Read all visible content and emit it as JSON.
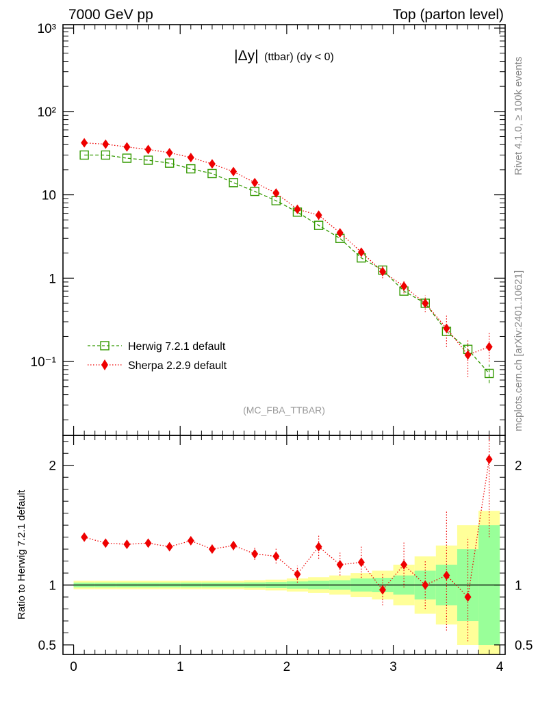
{
  "header": {
    "left": "7000 GeV pp",
    "right": "Top (parton level)"
  },
  "side": {
    "rivet": "Rivet 4.1.0, ≥ 100k events",
    "mcplots": "mcplots.cern.ch [arXiv:2401.10621]"
  },
  "analysis": "(MC_FBA_TTBAR)",
  "chart_data": {
    "type": "line",
    "title_symbol": "|Δy|",
    "title_rest": "(ttbar) (dy < 0)",
    "x": [
      0.1,
      0.3,
      0.5,
      0.7,
      0.9,
      1.1,
      1.3,
      1.5,
      1.7,
      1.9,
      2.1,
      2.3,
      2.5,
      2.7,
      2.9,
      3.1,
      3.3,
      3.5,
      3.7,
      3.9
    ],
    "xlim": [
      -0.1,
      4.05
    ],
    "x_ticks": [
      "0",
      "1",
      "2",
      "3",
      "4"
    ],
    "main_yscale": "log",
    "main_ylim": [
      0.013,
      1100
    ],
    "main_y_ticks": [
      "10⁻¹",
      "1",
      "10",
      "10²",
      "10³"
    ],
    "series": [
      {
        "name": "Herwig 7.2.1 default",
        "color": "#339900",
        "marker": "open-square",
        "line": "dashed",
        "values": [
          30,
          30,
          27.5,
          26,
          24,
          20.5,
          18,
          14,
          11,
          8.5,
          6.2,
          4.3,
          3.0,
          1.75,
          1.25,
          0.7,
          0.5,
          0.23,
          0.14,
          0.072
        ],
        "err_low": [
          0,
          0,
          0,
          0,
          0,
          0,
          0,
          0,
          0,
          0,
          0,
          0,
          0,
          0,
          0,
          0,
          0,
          0,
          0.11,
          0.055
        ],
        "err_high": [
          0,
          0,
          0,
          0,
          0,
          0,
          0,
          0,
          0,
          0,
          0,
          0,
          0,
          0,
          0,
          0,
          0,
          0,
          0.17,
          0.092
        ]
      },
      {
        "name": "Sherpa 2.2.9 default",
        "color": "#ee0000",
        "marker": "diamond",
        "line": "dotted",
        "values": [
          42,
          40.5,
          37.5,
          35,
          32,
          28,
          23.5,
          19,
          14,
          10.5,
          6.7,
          5.7,
          3.5,
          2.05,
          1.2,
          0.8,
          0.5,
          0.25,
          0.12,
          0.15
        ],
        "err_low": [
          41,
          39.5,
          36.5,
          34,
          31,
          27,
          22.5,
          18,
          13,
          9.7,
          6.2,
          5.0,
          3.1,
          1.8,
          1.0,
          0.66,
          0.39,
          0.15,
          0.065,
          0.1
        ],
        "err_high": [
          43,
          41.5,
          38.5,
          36,
          33,
          29,
          24.5,
          20,
          15,
          11.3,
          7.2,
          6.4,
          3.9,
          2.3,
          1.4,
          0.95,
          0.62,
          0.36,
          0.18,
          0.22
        ]
      }
    ],
    "ratio": {
      "ylabel": "Ratio to Herwig 7.2.1 default",
      "ylim": [
        0.42,
        2.25
      ],
      "y_ticks": [
        "0.5",
        "1",
        "2"
      ],
      "sherpa": [
        1.4,
        1.35,
        1.34,
        1.35,
        1.32,
        1.37,
        1.3,
        1.33,
        1.26,
        1.24,
        1.09,
        1.32,
        1.17,
        1.19,
        0.96,
        1.17,
        1.0,
        1.08,
        0.9,
        2.05
      ],
      "sherpa_err_low": [
        1.38,
        1.33,
        1.32,
        1.32,
        1.29,
        1.34,
        1.27,
        1.29,
        1.21,
        1.18,
        1.02,
        1.22,
        1.08,
        1.06,
        0.83,
        0.98,
        0.8,
        0.62,
        0.53,
        1.4
      ],
      "sherpa_err_high": [
        1.42,
        1.37,
        1.37,
        1.38,
        1.35,
        1.4,
        1.34,
        1.38,
        1.31,
        1.31,
        1.16,
        1.42,
        1.27,
        1.32,
        1.09,
        1.36,
        1.2,
        1.62,
        1.4,
        2.25
      ],
      "band_inner": [
        0.02,
        0.02,
        0.02,
        0.02,
        0.02,
        0.02,
        0.02,
        0.02,
        0.022,
        0.025,
        0.03,
        0.035,
        0.04,
        0.055,
        0.06,
        0.08,
        0.12,
        0.17,
        0.3,
        0.5
      ],
      "band_outer": [
        0.035,
        0.035,
        0.035,
        0.035,
        0.035,
        0.035,
        0.035,
        0.035,
        0.04,
        0.045,
        0.055,
        0.065,
        0.08,
        0.1,
        0.12,
        0.17,
        0.24,
        0.33,
        0.5,
        0.62
      ]
    }
  }
}
